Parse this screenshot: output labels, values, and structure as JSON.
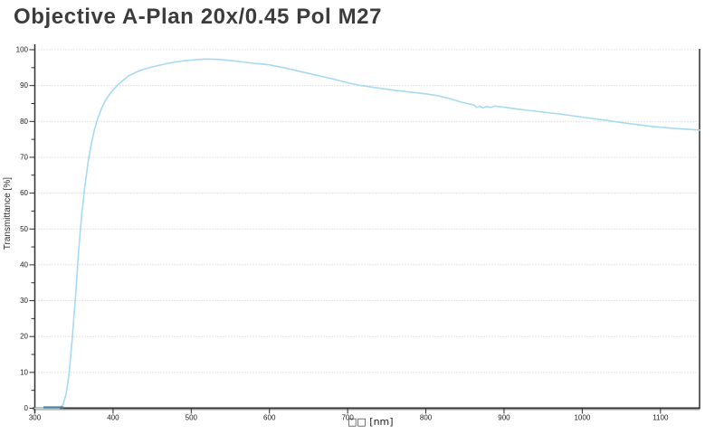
{
  "title": "Objective A-Plan 20x/0.45 Pol M27",
  "chart_data": {
    "type": "line",
    "title": "Objective A-Plan 20x/0.45 Pol M27",
    "xlabel": "□□ [nm]",
    "ylabel": "Transmittance [%]",
    "xlim": [
      300,
      1150
    ],
    "ylim": [
      0,
      100
    ],
    "x_ticks": [
      300,
      400,
      500,
      600,
      700,
      800,
      900,
      1000,
      1100
    ],
    "y_ticks": [
      0,
      10,
      20,
      30,
      40,
      50,
      60,
      70,
      80,
      90,
      100
    ],
    "y_minor_ticks": [
      5,
      15,
      25,
      35,
      45,
      55,
      65,
      75,
      85,
      95
    ],
    "grid": "horizontal dotted lines at each major y tick",
    "legend": "none",
    "colors": {
      "curve": "#a6d9f4",
      "curve_on_axis": "#4e86a2",
      "axis": "#2f2f2f",
      "axis_shadow": "#c6c6c6",
      "grid": "#c9c9c9",
      "title": "#3c3c3c",
      "tick_label": "#1c1c1c"
    },
    "axis_overlap_segment": {
      "x_from": 311,
      "x_to": 337,
      "y": 0
    },
    "series": [
      {
        "name": "transmittance",
        "color": "#a6d9f4",
        "points": [
          [
            300,
            0
          ],
          [
            310,
            0
          ],
          [
            320,
            0
          ],
          [
            331,
            0
          ],
          [
            336,
            1
          ],
          [
            340,
            4
          ],
          [
            344,
            10
          ],
          [
            348,
            20
          ],
          [
            352,
            31
          ],
          [
            356,
            44
          ],
          [
            360,
            54
          ],
          [
            364,
            62
          ],
          [
            368,
            68.5
          ],
          [
            372,
            73.5
          ],
          [
            376,
            77.5
          ],
          [
            380,
            80.5
          ],
          [
            385,
            83.5
          ],
          [
            390,
            85.8
          ],
          [
            395,
            87.4
          ],
          [
            400,
            88.8
          ],
          [
            410,
            91
          ],
          [
            420,
            92.7
          ],
          [
            430,
            93.8
          ],
          [
            440,
            94.6
          ],
          [
            450,
            95.2
          ],
          [
            460,
            95.7
          ],
          [
            470,
            96.2
          ],
          [
            480,
            96.6
          ],
          [
            490,
            96.9
          ],
          [
            500,
            97.1
          ],
          [
            510,
            97.3
          ],
          [
            520,
            97.4
          ],
          [
            535,
            97.3
          ],
          [
            550,
            97
          ],
          [
            565,
            96.6
          ],
          [
            580,
            96.2
          ],
          [
            600,
            95.8
          ],
          [
            620,
            94.9
          ],
          [
            640,
            93.9
          ],
          [
            660,
            92.9
          ],
          [
            680,
            91.9
          ],
          [
            700,
            90.8
          ],
          [
            717,
            90
          ],
          [
            740,
            89.3
          ],
          [
            760,
            88.7
          ],
          [
            780,
            88.2
          ],
          [
            800,
            87.7
          ],
          [
            815,
            87.2
          ],
          [
            830,
            86.4
          ],
          [
            845,
            85.4
          ],
          [
            855,
            84.9
          ],
          [
            861,
            84.6
          ],
          [
            865,
            83.9
          ],
          [
            869,
            84.3
          ],
          [
            873,
            83.8
          ],
          [
            878,
            84.2
          ],
          [
            883,
            83.9
          ],
          [
            888,
            84.3
          ],
          [
            895,
            84.1
          ],
          [
            905,
            83.8
          ],
          [
            915,
            83.5
          ],
          [
            930,
            83.1
          ],
          [
            950,
            82.6
          ],
          [
            970,
            82.1
          ],
          [
            1000,
            81.2
          ],
          [
            1030,
            80.3
          ],
          [
            1060,
            79.4
          ],
          [
            1090,
            78.6
          ],
          [
            1120,
            78
          ],
          [
            1150,
            77.6
          ]
        ]
      }
    ]
  }
}
